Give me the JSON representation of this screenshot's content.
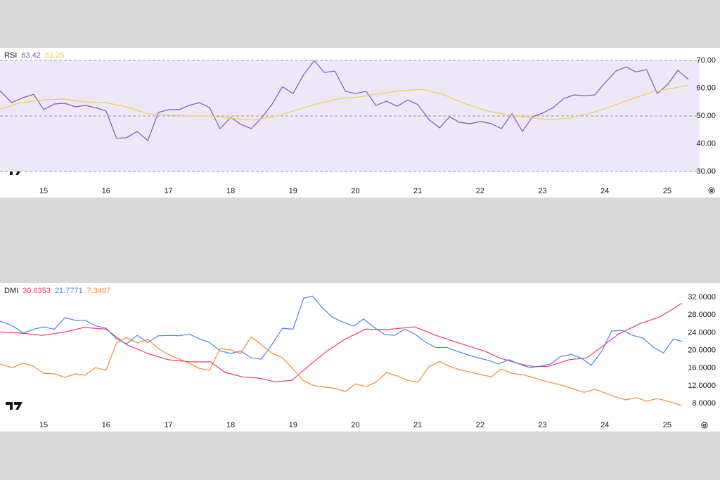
{
  "chart_data": [
    {
      "type": "line",
      "title": "RSI",
      "xlim": [
        14.3,
        25.52
      ],
      "xticks": [
        15,
        16,
        17,
        18,
        19,
        20,
        21,
        22,
        23,
        24,
        25
      ],
      "ylim": [
        25.4,
        74.6
      ],
      "yticks": [
        {
          "value": 30,
          "label": "30.00"
        },
        {
          "value": 40,
          "label": "40.00"
        },
        {
          "value": 50,
          "label": "50.00"
        },
        {
          "value": 60,
          "label": "60.00"
        },
        {
          "value": 70,
          "label": "70.00"
        }
      ],
      "band": [
        30,
        70
      ],
      "band_color": "#ede7f8",
      "hlines": [
        70,
        50,
        30
      ],
      "series": [
        {
          "color": "#7e57c2",
          "last_label": "63.42",
          "x": [
            14.3,
            14.49,
            14.67,
            14.84,
            15.0,
            15.17,
            15.34,
            15.51,
            15.67,
            15.83,
            16.0,
            16.17,
            16.33,
            16.5,
            16.67,
            16.84,
            17.01,
            17.18,
            17.33,
            17.5,
            17.66,
            17.83,
            18.0,
            18.16,
            18.33,
            18.49,
            18.66,
            18.83,
            19.0,
            19.17,
            19.34,
            19.5,
            19.67,
            19.84,
            20.0,
            20.17,
            20.33,
            20.5,
            20.67,
            20.84,
            21.0,
            21.18,
            21.35,
            21.51,
            21.67,
            21.84,
            22.01,
            22.18,
            22.34,
            22.51,
            22.68,
            22.84,
            23.0,
            23.17,
            23.34,
            23.51,
            23.67,
            23.84,
            24.0,
            24.18,
            24.34,
            24.5,
            24.67,
            24.84,
            25.01,
            25.17,
            25.34
          ],
          "values": [
            59.1,
            54.8,
            56.6,
            57.8,
            52.3,
            54.3,
            54.6,
            53.3,
            53.8,
            53.0,
            51.8,
            41.9,
            42.2,
            44.4,
            41.1,
            51.3,
            52.3,
            52.3,
            53.8,
            54.8,
            53.0,
            45.4,
            49.5,
            47.0,
            45.4,
            49.2,
            54.1,
            60.6,
            58.1,
            64.9,
            70.0,
            65.7,
            66.2,
            58.9,
            58.1,
            58.9,
            53.8,
            55.3,
            53.5,
            55.8,
            54.1,
            48.7,
            45.7,
            49.7,
            47.7,
            47.2,
            48.0,
            47.2,
            45.4,
            50.8,
            44.4,
            49.7,
            51.0,
            53.0,
            56.3,
            57.6,
            57.3,
            57.6,
            61.9,
            66.2,
            67.7,
            65.9,
            66.7,
            58.1,
            61.4,
            66.5,
            63.2
          ]
        },
        {
          "color": "#f2cf4a",
          "last_label": "61.25",
          "x": [
            14.3,
            14.64,
            15.0,
            15.32,
            15.65,
            16.0,
            16.33,
            16.67,
            17.0,
            17.35,
            17.68,
            18.0,
            18.36,
            18.7,
            19.04,
            19.37,
            19.71,
            20.05,
            20.39,
            20.73,
            21.07,
            21.4,
            21.74,
            22.08,
            22.42,
            22.76,
            23.1,
            23.43,
            23.77,
            24.11,
            24.45,
            24.79,
            25.12,
            25.34
          ],
          "values": [
            52.5,
            54.8,
            55.8,
            56.1,
            55.1,
            54.8,
            53.3,
            50.8,
            50.3,
            50.0,
            50.0,
            49.2,
            48.5,
            49.7,
            52.0,
            54.3,
            56.1,
            56.8,
            58.1,
            59.1,
            59.6,
            57.8,
            54.6,
            52.0,
            50.5,
            49.5,
            48.7,
            49.2,
            51.0,
            53.5,
            56.3,
            58.9,
            60.1,
            61.1
          ]
        }
      ]
    },
    {
      "type": "line",
      "title": "DMI",
      "xlim": [
        14.3,
        25.52
      ],
      "xticks": [
        15,
        16,
        17,
        18,
        19,
        20,
        21,
        22,
        23,
        24,
        25
      ],
      "ylim": [
        4.66,
        35.2
      ],
      "yticks": [
        {
          "value": 8,
          "label": "8.0000"
        },
        {
          "value": 12,
          "label": "12.0000"
        },
        {
          "value": 16,
          "label": "16.0000"
        },
        {
          "value": 20,
          "label": "20.0000"
        },
        {
          "value": 24,
          "label": "24.0000"
        },
        {
          "value": 28,
          "label": "28.0000"
        },
        {
          "value": 32,
          "label": "32.0000"
        }
      ],
      "series": [
        {
          "color": "#f23674",
          "last_label": "30.6353",
          "x": [
            14.3,
            14.64,
            14.98,
            15.32,
            15.65,
            16.0,
            16.33,
            16.67,
            17.0,
            17.35,
            17.68,
            17.91,
            18.19,
            18.47,
            18.7,
            18.98,
            19.26,
            19.54,
            19.83,
            20.16,
            20.5,
            20.95,
            21.29,
            21.63,
            22.08,
            22.31,
            22.64,
            22.87,
            23.1,
            23.43,
            23.71,
            23.94,
            24.22,
            24.56,
            24.9,
            25.24
          ],
          "values": [
            24.2,
            23.9,
            23.4,
            24.1,
            25.2,
            24.8,
            21.3,
            19.3,
            17.9,
            17.4,
            17.4,
            15.0,
            14.0,
            13.7,
            12.9,
            13.2,
            16.6,
            19.8,
            22.5,
            24.8,
            24.7,
            25.3,
            23.4,
            21.8,
            19.8,
            18.3,
            16.9,
            16.3,
            16.4,
            17.9,
            18.3,
            20.7,
            23.7,
            26.0,
            27.7,
            30.7
          ]
        },
        {
          "color": "#4a80f0",
          "last_label": "21.7771",
          "x": [
            14.3,
            14.5,
            14.67,
            14.84,
            15.0,
            15.17,
            15.34,
            15.51,
            15.67,
            15.83,
            16.0,
            16.17,
            16.33,
            16.5,
            16.67,
            16.84,
            17.01,
            17.18,
            17.33,
            17.5,
            17.66,
            17.83,
            18.0,
            18.16,
            18.33,
            18.49,
            18.66,
            18.83,
            19.0,
            19.17,
            19.31,
            19.46,
            19.63,
            19.8,
            19.97,
            20.13,
            20.3,
            20.47,
            20.63,
            20.79,
            20.96,
            21.13,
            21.3,
            21.46,
            21.63,
            21.8,
            21.97,
            22.14,
            22.29,
            22.46,
            22.63,
            22.79,
            22.96,
            23.13,
            23.29,
            23.46,
            23.63,
            23.78,
            23.95,
            24.11,
            24.28,
            24.45,
            24.61,
            24.78,
            24.94,
            25.1,
            25.24
          ],
          "values": [
            26.6,
            25.6,
            23.9,
            24.8,
            25.3,
            24.8,
            27.4,
            26.8,
            26.8,
            25.6,
            25.0,
            22.6,
            21.5,
            23.4,
            21.8,
            23.3,
            23.4,
            23.3,
            23.7,
            22.6,
            21.8,
            19.9,
            19.3,
            19.9,
            18.3,
            18.0,
            21.3,
            25.0,
            24.8,
            31.8,
            32.3,
            29.8,
            27.5,
            26.4,
            25.5,
            27.1,
            25.2,
            23.6,
            23.4,
            24.8,
            23.6,
            21.8,
            20.6,
            20.7,
            19.8,
            19.0,
            18.3,
            17.7,
            16.9,
            17.9,
            16.9,
            16.1,
            16.4,
            16.9,
            18.6,
            19.1,
            18.2,
            16.6,
            19.8,
            24.4,
            24.5,
            23.4,
            22.8,
            20.7,
            19.4,
            22.6,
            22.0
          ]
        },
        {
          "color": "#f7882f",
          "last_label": "7.3487",
          "x": [
            14.3,
            14.5,
            14.67,
            14.84,
            15.0,
            15.17,
            15.34,
            15.51,
            15.67,
            15.83,
            16.0,
            16.17,
            16.33,
            16.5,
            16.67,
            16.84,
            17.01,
            17.18,
            17.33,
            17.5,
            17.66,
            17.83,
            18.0,
            18.16,
            18.33,
            18.49,
            18.66,
            18.83,
            19.0,
            19.17,
            19.34,
            19.5,
            19.67,
            19.84,
            20.0,
            20.17,
            20.33,
            20.5,
            20.67,
            20.84,
            21.0,
            21.18,
            21.35,
            21.51,
            21.67,
            21.84,
            22.01,
            22.18,
            22.34,
            22.51,
            22.68,
            22.84,
            23.0,
            23.17,
            23.34,
            23.51,
            23.67,
            23.84,
            24.0,
            24.18,
            24.34,
            24.5,
            24.67,
            24.84,
            25.01,
            25.17,
            25.24
          ],
          "values": [
            16.9,
            16.1,
            17.1,
            16.4,
            14.8,
            14.7,
            13.9,
            14.7,
            14.4,
            16.1,
            15.5,
            21.7,
            22.9,
            21.7,
            22.5,
            20.4,
            19.0,
            18.0,
            17.1,
            15.9,
            15.5,
            20.4,
            20.1,
            19.3,
            23.1,
            21.3,
            19.4,
            18.3,
            15.8,
            13.1,
            12.0,
            11.7,
            11.4,
            10.7,
            12.4,
            11.8,
            12.8,
            15.0,
            14.2,
            13.2,
            12.8,
            16.3,
            17.5,
            16.4,
            15.6,
            15.1,
            14.5,
            14.0,
            15.8,
            14.8,
            14.5,
            13.9,
            13.2,
            12.6,
            12.0,
            11.2,
            10.5,
            11.2,
            10.4,
            9.4,
            8.8,
            9.3,
            8.5,
            9.1,
            8.5,
            7.8,
            7.5
          ]
        }
      ]
    }
  ]
}
